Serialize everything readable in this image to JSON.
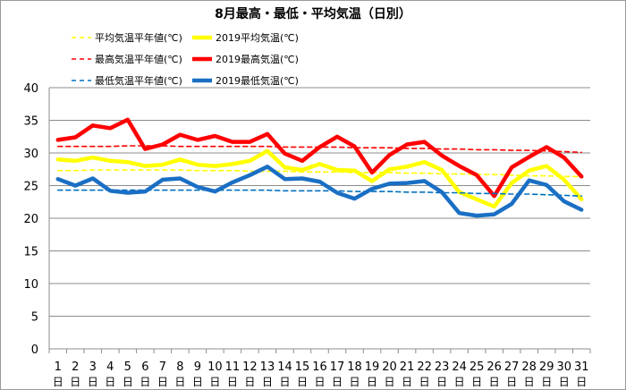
{
  "chart_data": {
    "type": "line",
    "title": "8月最高・最低・平均気温（日別）",
    "x": [
      "1",
      "2",
      "3",
      "4",
      "5",
      "6",
      "7",
      "8",
      "9",
      "10",
      "11",
      "12",
      "13",
      "14",
      "15",
      "16",
      "17",
      "18",
      "19",
      "20",
      "21",
      "22",
      "23",
      "24",
      "25",
      "26",
      "27",
      "28",
      "29",
      "30",
      "31"
    ],
    "x_suffix": "日",
    "ylim": [
      0,
      40
    ],
    "yticks": [
      0,
      5,
      10,
      15,
      20,
      25,
      30,
      35,
      40
    ],
    "grid": "horizontal",
    "legend_position": "top-left",
    "series": [
      {
        "name": "平均気温平年値(℃)",
        "color": "#ffff00",
        "style": "dashed",
        "values": [
          27.3,
          27.3,
          27.4,
          27.4,
          27.4,
          27.4,
          27.4,
          27.4,
          27.3,
          27.3,
          27.3,
          27.2,
          27.2,
          27.2,
          27.1,
          27.1,
          27.1,
          27.0,
          27.0,
          27.0,
          26.9,
          26.9,
          26.8,
          26.8,
          26.7,
          26.7,
          26.6,
          26.5,
          26.5,
          26.4,
          26.4
        ]
      },
      {
        "name": "2019平均気温(℃)",
        "color": "#ffff00",
        "style": "solid",
        "values": [
          29.0,
          28.8,
          29.3,
          28.8,
          28.6,
          28.0,
          28.2,
          29.0,
          28.2,
          28.0,
          28.3,
          28.8,
          30.3,
          27.8,
          27.4,
          28.3,
          27.4,
          27.3,
          25.7,
          27.5,
          27.9,
          28.6,
          27.4,
          24.0,
          22.9,
          21.8,
          25.4,
          27.3,
          28.0,
          25.9,
          22.9
        ]
      },
      {
        "name": "最高気温平年値(℃)",
        "color": "#ff0000",
        "style": "dashed",
        "values": [
          31.0,
          31.0,
          31.0,
          31.0,
          31.1,
          31.1,
          31.1,
          31.0,
          31.0,
          31.0,
          31.0,
          31.0,
          31.0,
          30.9,
          30.9,
          30.9,
          30.9,
          30.8,
          30.8,
          30.8,
          30.7,
          30.7,
          30.6,
          30.6,
          30.5,
          30.5,
          30.4,
          30.4,
          30.3,
          30.2,
          30.1
        ]
      },
      {
        "name": "2019最高気温(℃)",
        "color": "#ff0000",
        "style": "solid",
        "values": [
          32.0,
          32.4,
          34.2,
          33.8,
          35.1,
          30.6,
          31.3,
          32.8,
          32.0,
          32.6,
          31.7,
          31.7,
          32.9,
          29.9,
          28.8,
          30.9,
          32.5,
          31.0,
          27.0,
          29.7,
          31.3,
          31.7,
          29.6,
          28.0,
          26.6,
          23.4,
          27.8,
          29.4,
          30.9,
          29.3,
          26.4
        ]
      },
      {
        "name": "最低気温平年値(℃)",
        "color": "#0070c0",
        "style": "dashed",
        "values": [
          24.3,
          24.3,
          24.3,
          24.3,
          24.3,
          24.3,
          24.3,
          24.3,
          24.3,
          24.3,
          24.3,
          24.3,
          24.3,
          24.2,
          24.2,
          24.2,
          24.2,
          24.1,
          24.1,
          24.1,
          24.0,
          24.0,
          23.9,
          23.9,
          23.8,
          23.8,
          23.7,
          23.7,
          23.6,
          23.5,
          23.4
        ]
      },
      {
        "name": "2019最低気温(℃)",
        "color": "#1a6fc4",
        "style": "solid",
        "values": [
          26.0,
          25.0,
          26.1,
          24.2,
          23.9,
          24.1,
          25.9,
          26.1,
          24.8,
          24.1,
          25.5,
          26.6,
          27.9,
          26.0,
          26.1,
          25.6,
          23.9,
          23.0,
          24.5,
          25.3,
          25.4,
          25.7,
          24.0,
          20.8,
          20.4,
          20.6,
          22.2,
          25.8,
          25.1,
          22.6,
          21.3
        ]
      }
    ]
  }
}
